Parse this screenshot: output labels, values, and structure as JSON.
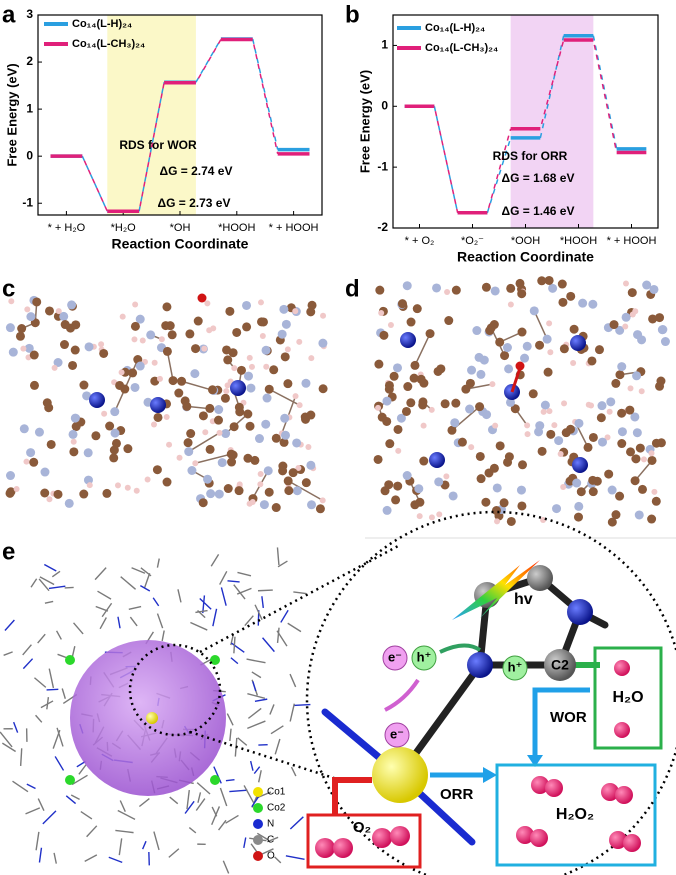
{
  "panel_labels": [
    "a",
    "b",
    "c",
    "d",
    "e"
  ],
  "chart_data": [
    {
      "type": "step",
      "xlabel": "Reaction Coordinate",
      "ylabel": "Free Energy (eV)",
      "categories": [
        "* + H₂O",
        "*H₂O",
        "*OH",
        "*HOOH",
        "* + HOOH"
      ],
      "series": [
        {
          "name": "Co₁₄(L-H)₂₄",
          "color": "#2a9fe0",
          "values": [
            0,
            -1.17,
            1.57,
            2.49,
            0.14
          ]
        },
        {
          "name": "Co₁₄(L-CH₃)₂₄",
          "color": "#e0207a",
          "values": [
            0,
            -1.17,
            1.56,
            2.48,
            0.05
          ]
        }
      ],
      "ylim": [
        -1.25,
        3
      ],
      "yticks": [
        -1,
        0,
        1,
        2,
        3
      ],
      "highlight": [
        1,
        2
      ],
      "highlight_color": "#fbf8c8",
      "annotations": [
        {
          "text": "RDS for WOR",
          "color": "#000"
        },
        {
          "text": "ΔG = 2.74 eV",
          "color": "#2a9fe0"
        },
        {
          "text": "ΔG = 2.73 eV",
          "color": "#e0207a"
        }
      ]
    },
    {
      "type": "step",
      "xlabel": "Reaction Coordinate",
      "ylabel": "Free Energy (eV)",
      "categories": [
        "* + O₂",
        "*O₂⁻",
        "*OOH",
        "*HOOH",
        "* + HOOH"
      ],
      "series": [
        {
          "name": "Co₁₄(L-H)₂₄",
          "color": "#2a9fe0",
          "values": [
            0,
            -1.75,
            -0.52,
            1.16,
            -0.7
          ]
        },
        {
          "name": "Co₁₄(L-CH₃)₂₄",
          "color": "#e0207a",
          "values": [
            0,
            -1.75,
            -0.37,
            1.09,
            -0.76
          ]
        }
      ],
      "ylim": [
        -2,
        1.5
      ],
      "yticks": [
        -2,
        -1,
        0,
        1
      ],
      "highlight": [
        2,
        3
      ],
      "highlight_color": "#f2d4f4",
      "annotations": [
        {
          "text": "RDS for ORR",
          "color": "#000"
        },
        {
          "text": "ΔG = 1.68 eV",
          "color": "#2a9fe0"
        },
        {
          "text": "ΔG = 1.46 eV",
          "color": "#e0207a"
        }
      ]
    }
  ],
  "panel_e": {
    "legend": [
      {
        "name": "Co1",
        "color": "#f2e200"
      },
      {
        "name": "Co2",
        "color": "#2bd82b"
      },
      {
        "name": "N",
        "color": "#1a2bd0"
      },
      {
        "name": "C",
        "color": "#8a8a8a"
      },
      {
        "name": "O",
        "color": "#d01414"
      }
    ],
    "hv": "hv",
    "electron": "e⁻",
    "hole": "h⁺",
    "hole_2": "h⁺",
    "electron_2": "e⁻",
    "carbon": "C2",
    "water": "H₂O",
    "wor": "WOR",
    "orr": "ORR",
    "peroxide": "H₂O₂",
    "oxygen": "O₂"
  }
}
